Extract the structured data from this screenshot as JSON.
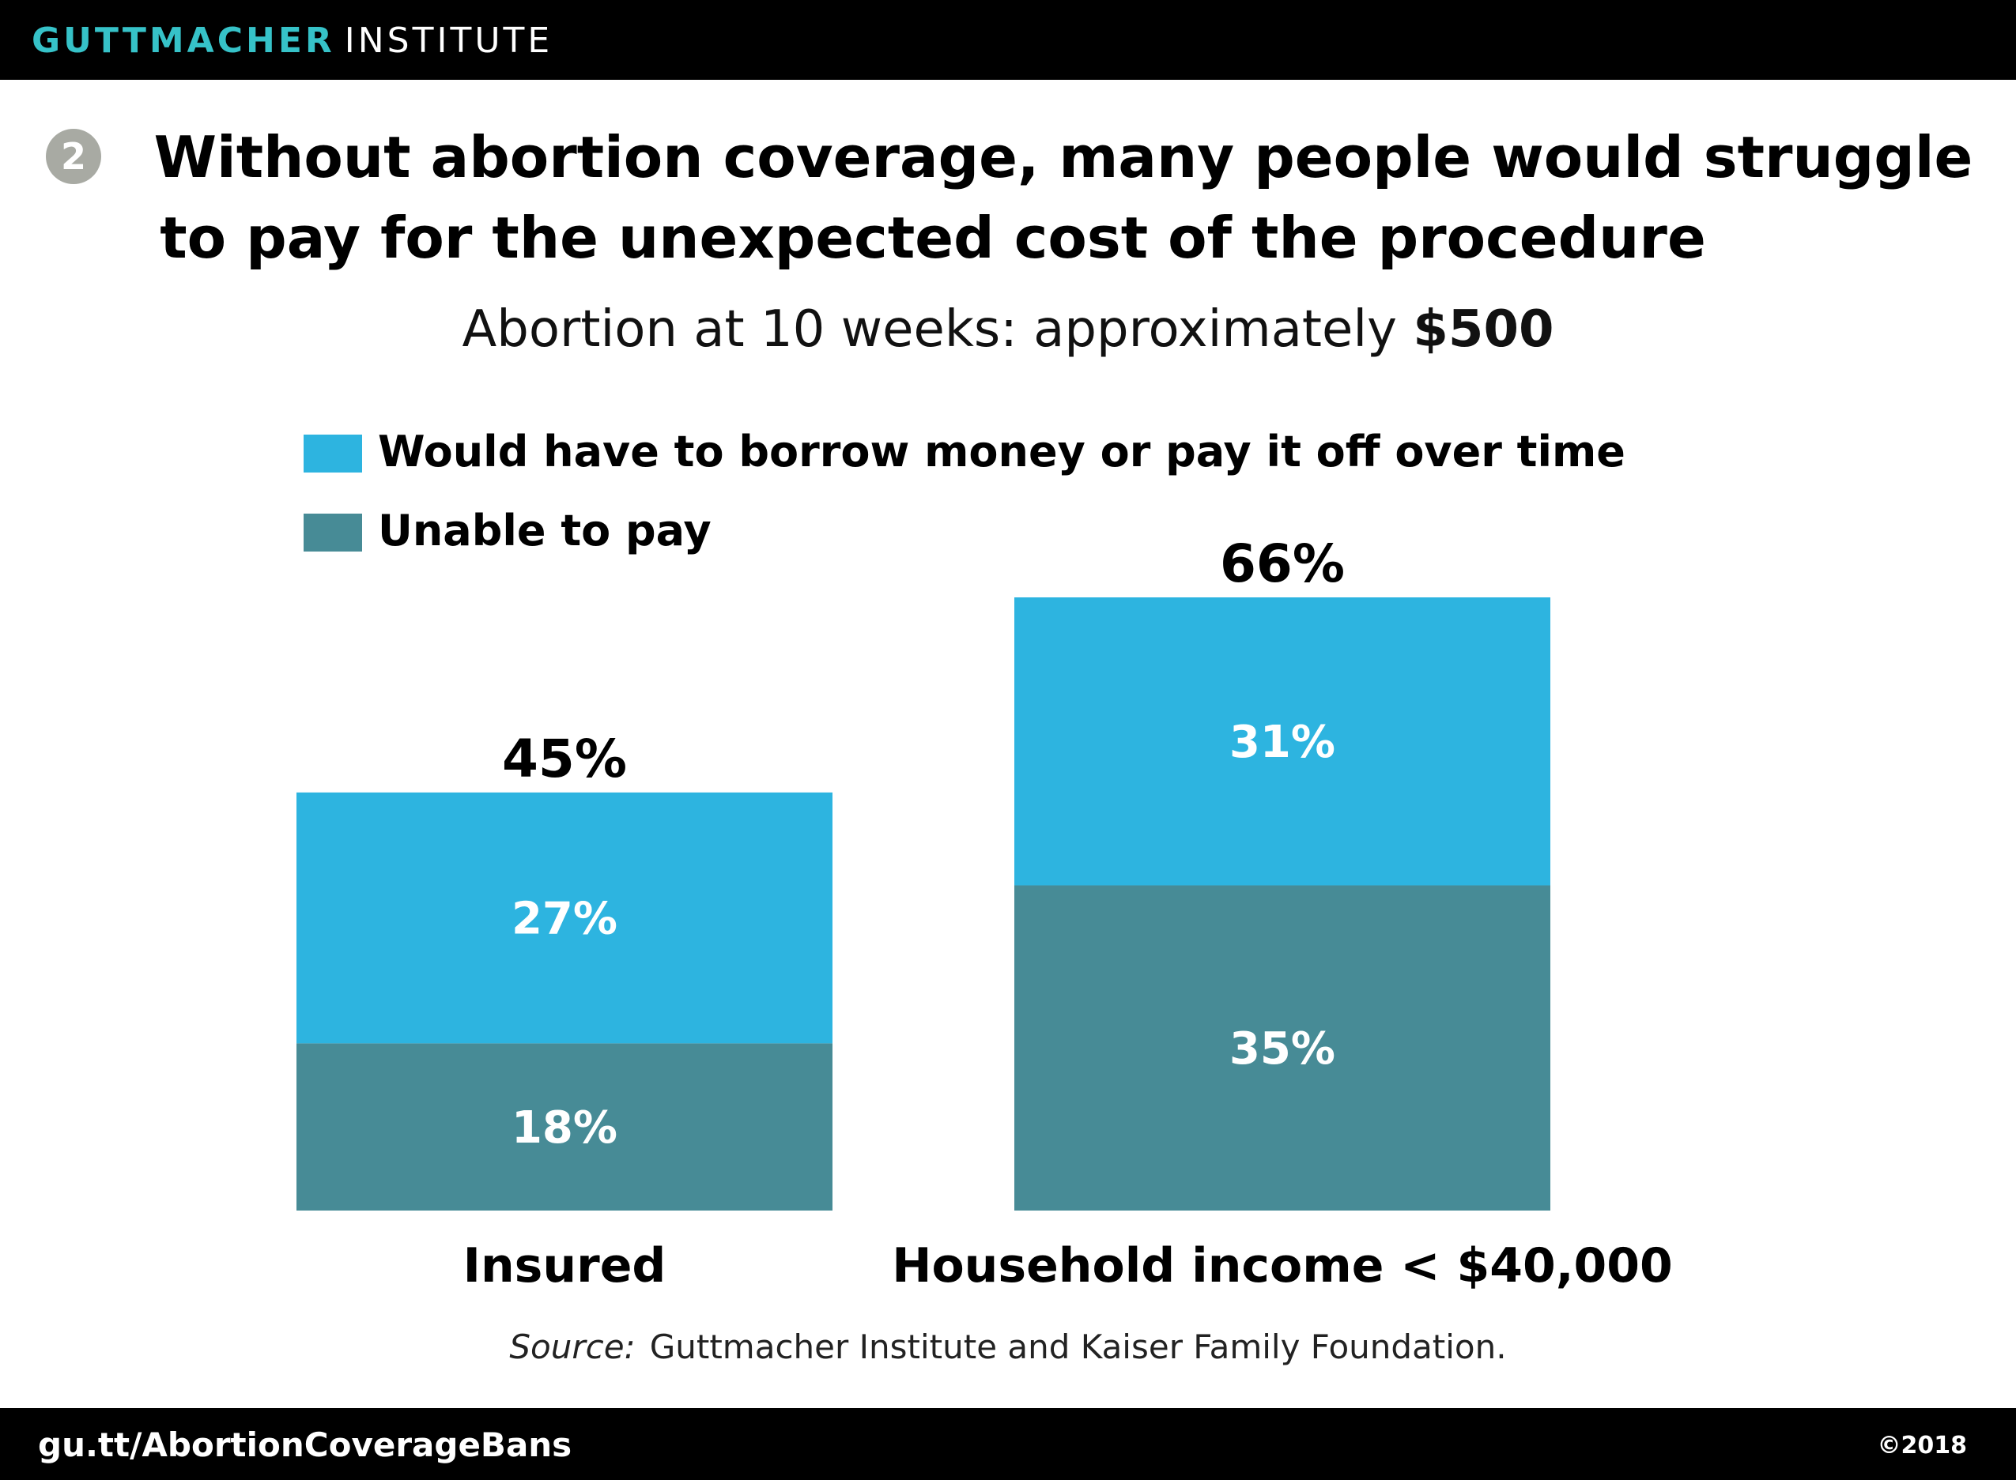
{
  "header": {
    "brand_primary": "GUTTMACHER",
    "brand_secondary": "INSTITUTE"
  },
  "figure": {
    "number": "2",
    "title_line1": "Without abortion coverage, many people would struggle",
    "title_line2": "to pay for the unexpected cost of the procedure",
    "subtitle_text": "Abortion at 10 weeks: approximately",
    "subtitle_amount": "$500"
  },
  "chart_data": {
    "type": "bar",
    "stacked": true,
    "categories": [
      "Insured",
      "Household income < $40,000"
    ],
    "series": [
      {
        "name": "Unable to pay",
        "values": [
          18,
          35
        ],
        "labels": [
          "18%",
          "35%"
        ],
        "color": "#478b96"
      },
      {
        "name": "Would have to borrow money or pay it off over time",
        "values": [
          27,
          31
        ],
        "labels": [
          "27%",
          "31%"
        ],
        "color": "#2db4e0"
      }
    ],
    "totals": [
      45,
      66
    ],
    "total_labels": [
      "45%",
      "66%"
    ],
    "legend": [
      {
        "label": "Would have to borrow money or pay it off over time",
        "color": "#2db4e0"
      },
      {
        "label": "Unable to pay",
        "color": "#478b96"
      }
    ],
    "legend_position": "top-left",
    "grid": false,
    "ylim": [
      0,
      66
    ]
  },
  "source": {
    "label": "Source:",
    "text": "Guttmacher Institute and Kaiser Family Foundation."
  },
  "footer": {
    "url": "gu.tt/AbortionCoverageBans",
    "copyright": "©2018"
  }
}
